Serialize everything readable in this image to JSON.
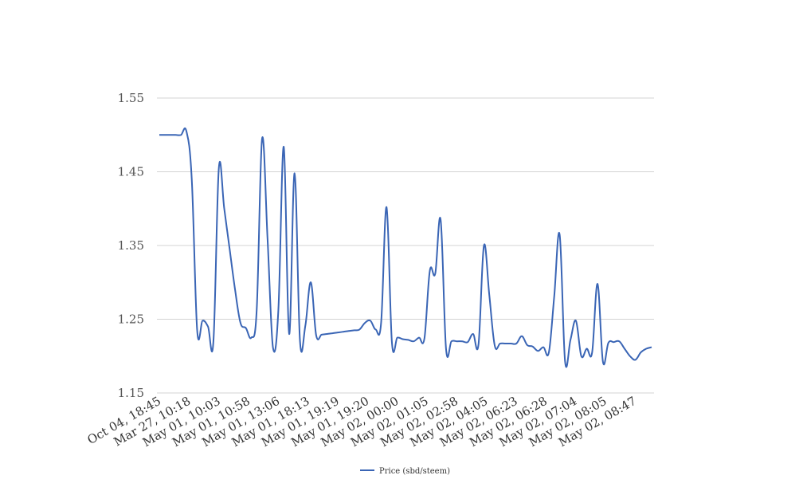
{
  "chart_data": {
    "type": "line",
    "ylim": [
      1.15,
      1.55
    ],
    "y_ticks": [
      "1.55",
      "1.45",
      "1.35",
      "1.25",
      "1.15"
    ],
    "grid": true,
    "legend_placement": "bottom",
    "x_tick_labels": [
      "Oct 04, 18:45",
      "Mar 27, 10:18",
      "May 01, 10:03",
      "May 01, 10:58",
      "May 01, 13:06",
      "May 01, 18:13",
      "May 01, 19:19",
      "May 01, 19:20",
      "May 02, 00:00",
      "May 02, 01:05",
      "May 02, 02:58",
      "May 02, 04:05",
      "May 02, 06:23",
      "May 02, 06:28",
      "May 02, 07:04",
      "May 02, 08:05",
      "May 02, 08:47"
    ],
    "series": [
      {
        "name": "Price (sbd/steem)",
        "color": "#3a65b5",
        "values": [
          1.5,
          1.5,
          1.5,
          1.5,
          1.5,
          1.505,
          1.44,
          1.235,
          1.248,
          1.24,
          1.22,
          1.455,
          1.4,
          1.345,
          1.29,
          1.245,
          1.238,
          1.225,
          1.262,
          1.495,
          1.36,
          1.212,
          1.262,
          1.484,
          1.23,
          1.448,
          1.22,
          1.242,
          1.3,
          1.228,
          1.229,
          1.23,
          1.231,
          1.232,
          1.233,
          1.234,
          1.235,
          1.236,
          1.245,
          1.248,
          1.236,
          1.245,
          1.402,
          1.218,
          1.225,
          1.223,
          1.222,
          1.22,
          1.225,
          1.224,
          1.316,
          1.312,
          1.385,
          1.21,
          1.22,
          1.22,
          1.22,
          1.219,
          1.23,
          1.216,
          1.35,
          1.282,
          1.214,
          1.217,
          1.217,
          1.217,
          1.217,
          1.227,
          1.215,
          1.213,
          1.207,
          1.212,
          1.205,
          1.282,
          1.365,
          1.193,
          1.222,
          1.248,
          1.2,
          1.21,
          1.205,
          1.298,
          1.192,
          1.218,
          1.219,
          1.22,
          1.21,
          1.2,
          1.195,
          1.205,
          1.21,
          1.212
        ]
      }
    ]
  }
}
